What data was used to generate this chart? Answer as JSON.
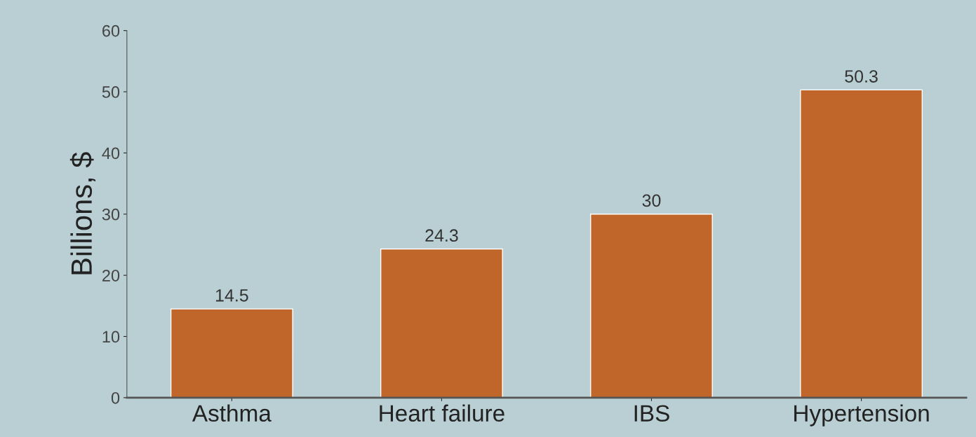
{
  "chart_data": {
    "type": "bar",
    "ylabel": "Billions, $",
    "categories": [
      "Asthma",
      "Heart failure",
      "IBS",
      "Hypertension"
    ],
    "values": [
      14.5,
      24.3,
      30,
      50.3
    ],
    "color": "#c0662a",
    "ylim": [
      0,
      60
    ],
    "yticks": [
      0,
      10,
      20,
      30,
      40,
      50,
      60
    ],
    "data_labels": true,
    "grid": false
  }
}
